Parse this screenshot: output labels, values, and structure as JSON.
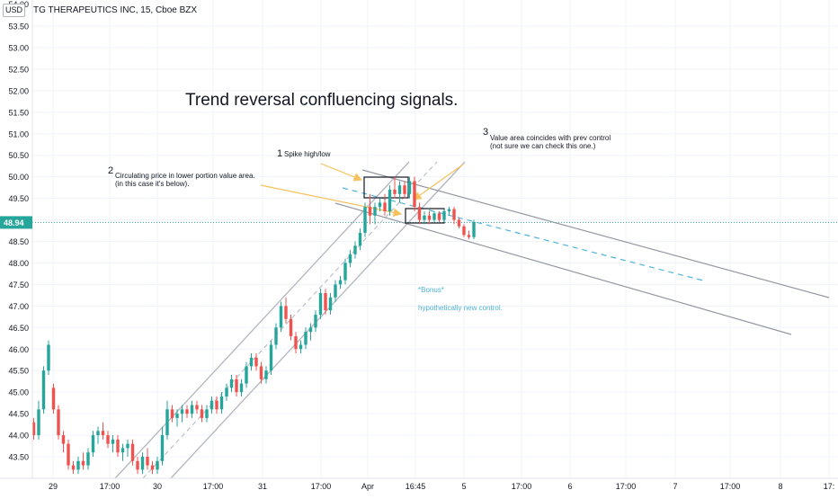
{
  "header": {
    "title": "TG THERAPEUTICS INC, 15, Cboe BZX",
    "currency": "USD"
  },
  "colors": {
    "up": "#26a69a",
    "down": "#ef5350",
    "accent": "#26a69a",
    "channel": "#b2b5be",
    "dashed_blue": "#4fb3d9",
    "arrow": "#f7c15e",
    "text": "#131722"
  },
  "chart_data": {
    "type": "candlestick",
    "title": "Trend reversal confluencing signals.",
    "ylim": [
      43.1,
      54.2
    ],
    "yticks": [
      "53.50",
      "53.00",
      "52.50",
      "52.00",
      "51.50",
      "51.00",
      "50.50",
      "50.00",
      "49.50",
      "49.00",
      "48.50",
      "48.00",
      "47.50",
      "47.00",
      "46.50",
      "46.00",
      "45.50",
      "45.00",
      "44.50",
      "44.00",
      "43.50"
    ],
    "current_price": "48.94",
    "xticks": [
      "29",
      "17:00",
      "30",
      "17:00",
      "31",
      "17:00",
      "Apr",
      "16:45",
      "5",
      "17:00",
      "6",
      "17:00",
      "7",
      "17:00",
      "8",
      "17:"
    ],
    "candles": [
      [
        44.2,
        44.5,
        44.1,
        44.3
      ],
      [
        44.3,
        44.4,
        43.9,
        44.0
      ],
      [
        44.0,
        44.8,
        43.9,
        44.6
      ],
      [
        44.6,
        45.6,
        44.5,
        45.5
      ],
      [
        45.5,
        46.2,
        45.4,
        46.1
      ],
      [
        45.1,
        45.2,
        44.5,
        44.6
      ],
      [
        44.6,
        44.7,
        43.9,
        44.0
      ],
      [
        44.0,
        44.1,
        43.6,
        43.8
      ],
      [
        43.8,
        43.9,
        43.2,
        43.3
      ],
      [
        43.3,
        43.4,
        43.1,
        43.2
      ],
      [
        43.2,
        43.5,
        43.1,
        43.4
      ],
      [
        43.4,
        43.6,
        43.2,
        43.3
      ],
      [
        43.3,
        43.7,
        43.2,
        43.6
      ],
      [
        43.6,
        44.1,
        43.5,
        44.0
      ],
      [
        44.0,
        44.2,
        43.8,
        44.1
      ],
      [
        44.1,
        44.3,
        43.9,
        44.0
      ],
      [
        44.0,
        44.1,
        43.7,
        43.8
      ],
      [
        43.8,
        44.0,
        43.6,
        43.9
      ],
      [
        43.9,
        44.0,
        43.5,
        43.6
      ],
      [
        43.6,
        43.8,
        43.4,
        43.7
      ],
      [
        43.7,
        43.9,
        43.5,
        43.8
      ],
      [
        43.8,
        43.9,
        43.3,
        43.4
      ],
      [
        43.4,
        43.5,
        43.1,
        43.2
      ],
      [
        43.2,
        43.6,
        43.1,
        43.5
      ],
      [
        43.5,
        43.7,
        43.2,
        43.3
      ],
      [
        43.3,
        43.4,
        43.1,
        43.2
      ],
      [
        43.2,
        43.5,
        43.1,
        43.4
      ],
      [
        43.4,
        44.2,
        43.3,
        44.0
      ],
      [
        44.0,
        44.8,
        43.9,
        44.6
      ],
      [
        44.6,
        44.7,
        44.3,
        44.4
      ],
      [
        44.4,
        44.6,
        44.2,
        44.5
      ],
      [
        44.5,
        44.7,
        44.3,
        44.6
      ],
      [
        44.6,
        44.7,
        44.4,
        44.5
      ],
      [
        44.5,
        44.8,
        44.4,
        44.7
      ],
      [
        44.7,
        44.8,
        44.5,
        44.6
      ],
      [
        44.6,
        44.7,
        44.3,
        44.4
      ],
      [
        44.4,
        44.7,
        44.3,
        44.6
      ],
      [
        44.6,
        44.9,
        44.5,
        44.8
      ],
      [
        44.8,
        44.9,
        44.5,
        44.6
      ],
      [
        44.6,
        45.0,
        44.5,
        44.9
      ],
      [
        44.9,
        45.2,
        44.8,
        45.1
      ],
      [
        45.1,
        45.4,
        45.0,
        45.3
      ],
      [
        45.3,
        45.4,
        44.9,
        45.0
      ],
      [
        45.0,
        45.3,
        44.9,
        45.2
      ],
      [
        45.2,
        45.7,
        45.1,
        45.6
      ],
      [
        45.6,
        45.9,
        45.5,
        45.8
      ],
      [
        45.8,
        45.9,
        45.5,
        45.6
      ],
      [
        45.6,
        45.7,
        45.2,
        45.3
      ],
      [
        45.3,
        45.6,
        45.2,
        45.5
      ],
      [
        45.5,
        46.2,
        45.4,
        46.1
      ],
      [
        46.1,
        46.6,
        46.0,
        46.5
      ],
      [
        46.5,
        47.1,
        46.4,
        47.0
      ],
      [
        47.0,
        47.2,
        46.6,
        46.7
      ],
      [
        46.7,
        46.8,
        46.2,
        46.3
      ],
      [
        46.3,
        46.4,
        45.9,
        46.0
      ],
      [
        46.0,
        46.2,
        45.9,
        46.1
      ],
      [
        46.1,
        46.5,
        46.0,
        46.4
      ],
      [
        46.4,
        46.6,
        46.2,
        46.5
      ],
      [
        46.5,
        46.9,
        46.4,
        46.8
      ],
      [
        46.8,
        47.4,
        46.7,
        47.3
      ],
      [
        47.3,
        47.4,
        46.8,
        46.9
      ],
      [
        46.9,
        47.3,
        46.8,
        47.2
      ],
      [
        47.2,
        47.6,
        47.1,
        47.5
      ],
      [
        47.5,
        47.7,
        47.4,
        47.6
      ],
      [
        47.6,
        48.1,
        47.5,
        48.0
      ],
      [
        48.0,
        48.3,
        47.9,
        48.2
      ],
      [
        48.2,
        48.5,
        48.1,
        48.4
      ],
      [
        48.4,
        48.8,
        48.3,
        48.7
      ],
      [
        48.7,
        49.4,
        48.6,
        49.3
      ],
      [
        49.3,
        49.6,
        48.9,
        49.1
      ],
      [
        49.1,
        49.4,
        48.9,
        49.3
      ],
      [
        49.3,
        49.5,
        49.2,
        49.4
      ],
      [
        49.4,
        49.6,
        49.1,
        49.2
      ],
      [
        49.2,
        49.8,
        49.1,
        49.7
      ],
      [
        49.7,
        50.0,
        49.5,
        49.6
      ],
      [
        49.6,
        49.9,
        49.4,
        49.8
      ],
      [
        49.8,
        49.9,
        49.5,
        49.6
      ],
      [
        49.6,
        50.0,
        49.5,
        49.9
      ],
      [
        49.9,
        50.0,
        49.2,
        49.3
      ],
      [
        49.3,
        49.4,
        48.9,
        49.0
      ],
      [
        49.0,
        49.2,
        48.9,
        49.1
      ],
      [
        49.1,
        49.2,
        48.9,
        49.0
      ],
      [
        49.0,
        49.2,
        48.95,
        49.15
      ],
      [
        49.15,
        49.2,
        48.95,
        49.0
      ],
      [
        49.0,
        49.25,
        48.95,
        49.2
      ],
      [
        49.2,
        49.3,
        49.1,
        49.25
      ],
      [
        49.25,
        49.3,
        48.9,
        49.0
      ],
      [
        49.0,
        49.05,
        48.8,
        48.85
      ],
      [
        48.85,
        48.9,
        48.6,
        48.65
      ],
      [
        48.65,
        48.75,
        48.55,
        48.6
      ],
      [
        48.6,
        49.0,
        48.55,
        48.95
      ]
    ]
  },
  "annotations": {
    "n1": "1",
    "a1": "Spike high/low",
    "n2": "2",
    "a2_line1": "Circulating price in lower portion value area.",
    "a2_line2": "(in this case it's below).",
    "n3": "3",
    "a3_line1": "Value area coincides with prev control",
    "a3_line2": "(not sure we can check this one.)",
    "bonus1": "*Bonus*",
    "bonus2": "hypothetically new control."
  }
}
